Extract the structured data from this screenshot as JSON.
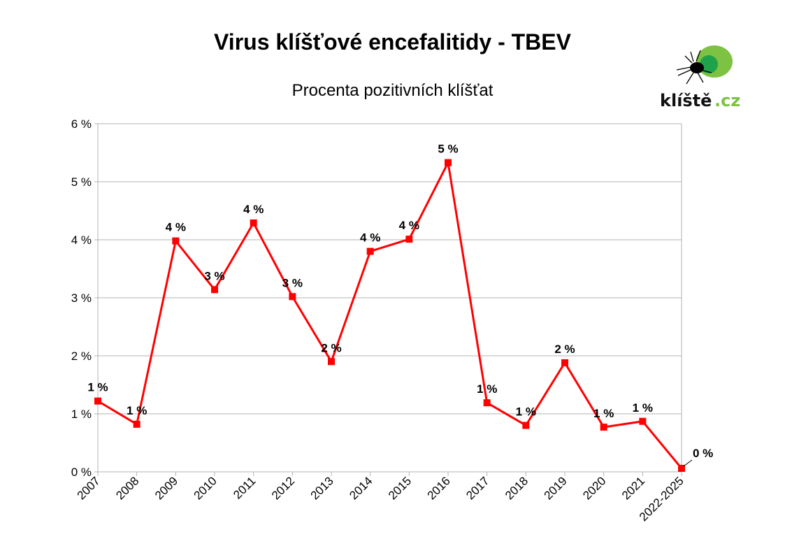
{
  "chart_data": {
    "type": "line",
    "title": "Virus klíšťové encefalitidy - TBEV",
    "subtitle": "Procenta pozitivních klíšťat",
    "xlabel": "",
    "ylabel": "",
    "categories": [
      "2007",
      "2008",
      "2009",
      "2010",
      "2011",
      "2012",
      "2013",
      "2014",
      "2015",
      "2016",
      "2017",
      "2018",
      "2019",
      "2020",
      "2021",
      "2022-2025"
    ],
    "series": [
      {
        "values": [
          1.22,
          0.82,
          3.98,
          3.14,
          4.29,
          3.02,
          1.9,
          3.8,
          4.01,
          5.33,
          1.19,
          0.8,
          1.88,
          0.77,
          0.87,
          0.06
        ],
        "labels": [
          "1 %",
          "1 %",
          "4 %",
          "3 %",
          "4 %",
          "3 %",
          "2 %",
          "4 %",
          "4 %",
          "5 %",
          "1 %",
          "1 %",
          "2 %",
          "1 %",
          "1 %",
          "0 %"
        ],
        "color": "#ff0000"
      }
    ],
    "ylim": [
      0,
      6
    ],
    "yticks": [
      "0 %",
      "1 %",
      "2 %",
      "3 %",
      "4 %",
      "5 %",
      "6 %"
    ],
    "grid": true,
    "legend": "none"
  },
  "logo": {
    "text_main": "klíště",
    "text_tld": ".cz",
    "green_light": "#7dc242",
    "green_dark": "#1fa24a"
  }
}
